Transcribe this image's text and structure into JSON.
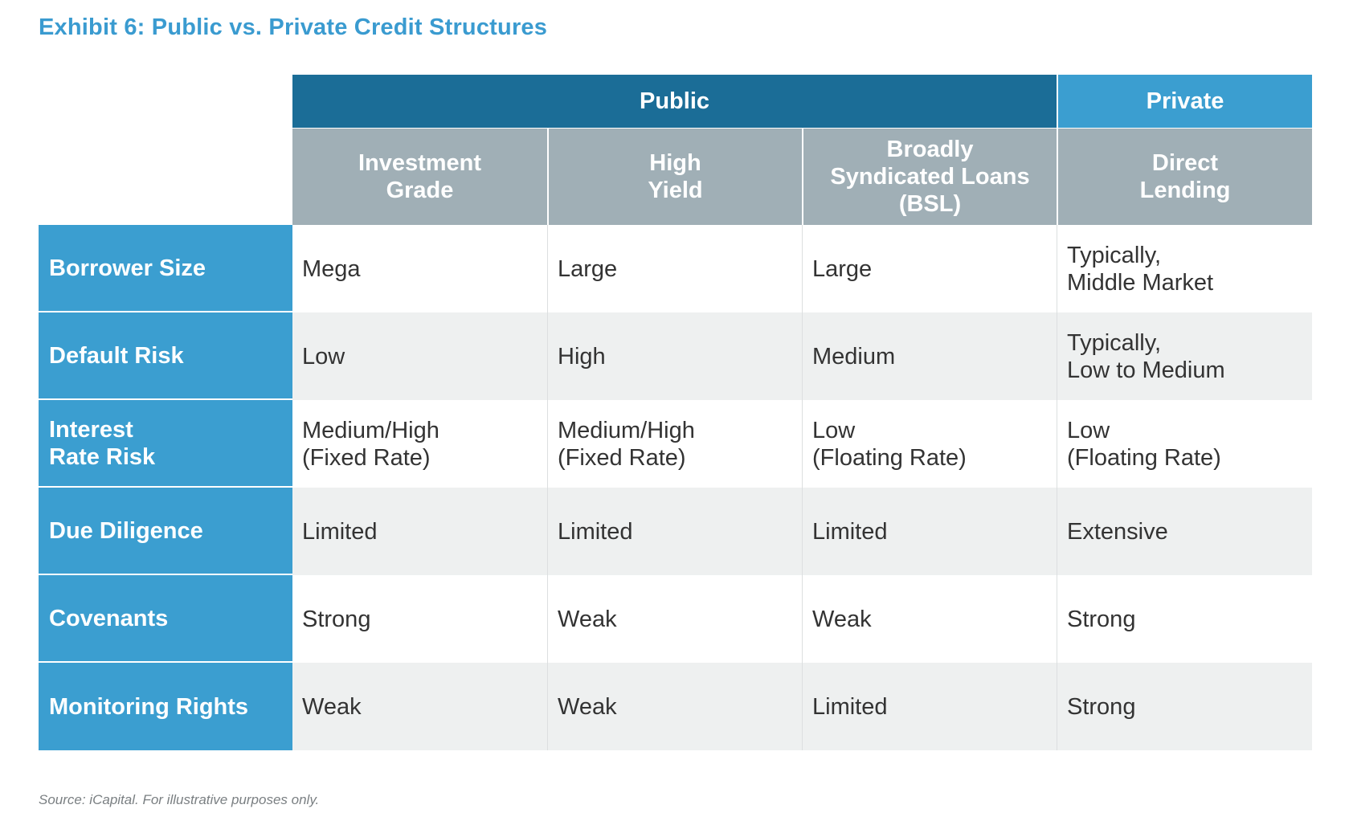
{
  "title": "Exhibit 6: Public vs. Private Credit Structures",
  "groups": {
    "public": "Public",
    "private": "Private"
  },
  "columns": [
    "Investment\nGrade",
    "High\nYield",
    "Broadly\nSyndicated Loans\n(BSL)",
    "Direct\nLending"
  ],
  "rows": [
    {
      "label": "Borrower Size",
      "values": [
        "Mega",
        "Large",
        "Large",
        "Typically,\nMiddle Market"
      ]
    },
    {
      "label": "Default Risk",
      "values": [
        "Low",
        "High",
        "Medium",
        "Typically,\nLow to Medium"
      ]
    },
    {
      "label": "Interest\nRate Risk",
      "values": [
        "Medium/High\n(Fixed Rate)",
        "Medium/High\n(Fixed Rate)",
        "Low\n(Floating Rate)",
        "Low\n(Floating Rate)"
      ]
    },
    {
      "label": "Due Diligence",
      "values": [
        "Limited",
        "Limited",
        "Limited",
        "Extensive"
      ]
    },
    {
      "label": "Covenants",
      "values": [
        "Strong",
        "Weak",
        "Weak",
        "Strong"
      ]
    },
    {
      "label": "Monitoring Rights",
      "values": [
        "Weak",
        "Weak",
        "Limited",
        "Strong"
      ]
    }
  ],
  "source": "Source: iCapital. For illustrative purposes only.",
  "colors": {
    "title": "#3a9bd0",
    "public_header": "#1b6d97",
    "private_header": "#3b9ed0",
    "subheader": "#a0afb6",
    "row_label": "#3b9ed0",
    "alt_row": "#eef0f0"
  }
}
